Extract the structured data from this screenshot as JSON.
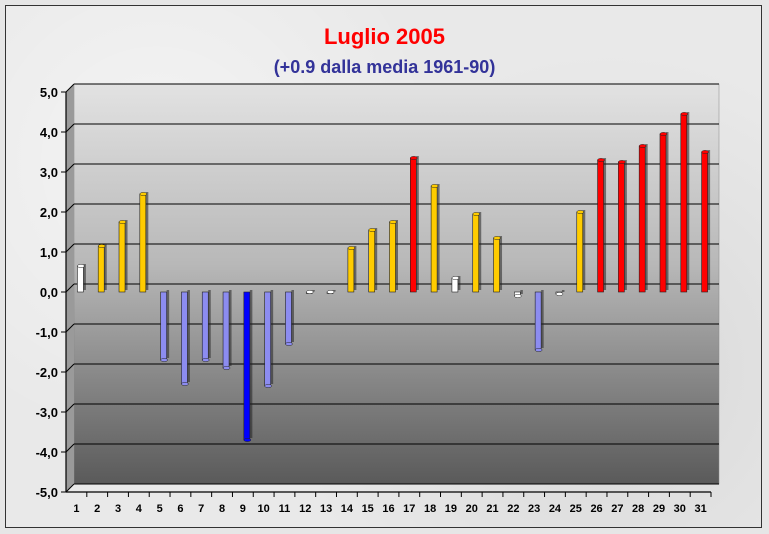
{
  "chart_data": {
    "type": "bar",
    "title": "Luglio 2005",
    "subtitle": "(+0.9 dalla media 1961-90)",
    "xlabel": "",
    "ylabel": "",
    "ylim": [
      -5,
      5
    ],
    "y_ticks": [
      "5,0",
      "4,0",
      "3,0",
      "2,0",
      "1,0",
      "0,0",
      "-1,0",
      "-2,0",
      "-3,0",
      "-4,0",
      "-5,0"
    ],
    "categories": [
      "1",
      "2",
      "3",
      "4",
      "5",
      "6",
      "7",
      "8",
      "9",
      "10",
      "11",
      "12",
      "13",
      "14",
      "15",
      "16",
      "17",
      "18",
      "19",
      "20",
      "21",
      "22",
      "23",
      "24",
      "25",
      "26",
      "27",
      "28",
      "29",
      "30",
      "31"
    ],
    "values": [
      0.65,
      1.15,
      1.75,
      2.45,
      -1.7,
      -2.3,
      -1.7,
      -1.9,
      -3.7,
      -2.35,
      -1.3,
      0.0,
      0.0,
      1.1,
      1.55,
      1.75,
      3.35,
      2.65,
      0.35,
      1.95,
      1.35,
      -0.1,
      -1.45,
      -0.05,
      2.0,
      3.3,
      3.25,
      3.65,
      3.95,
      4.45,
      3.5
    ],
    "colors": {
      "white": "#ffffff",
      "yellow": "#ffcc00",
      "red": "#ff0000",
      "light_blue": "#8c8cf0",
      "blue": "#0000ff"
    },
    "bar_colors": [
      "white",
      "yellow",
      "yellow",
      "yellow",
      "light_blue",
      "light_blue",
      "light_blue",
      "light_blue",
      "blue",
      "light_blue",
      "light_blue",
      "white",
      "white",
      "yellow",
      "yellow",
      "yellow",
      "red",
      "yellow",
      "white",
      "yellow",
      "yellow",
      "white",
      "light_blue",
      "white",
      "yellow",
      "red",
      "red",
      "red",
      "red",
      "red",
      "red"
    ],
    "grid": true,
    "legend": "none"
  }
}
